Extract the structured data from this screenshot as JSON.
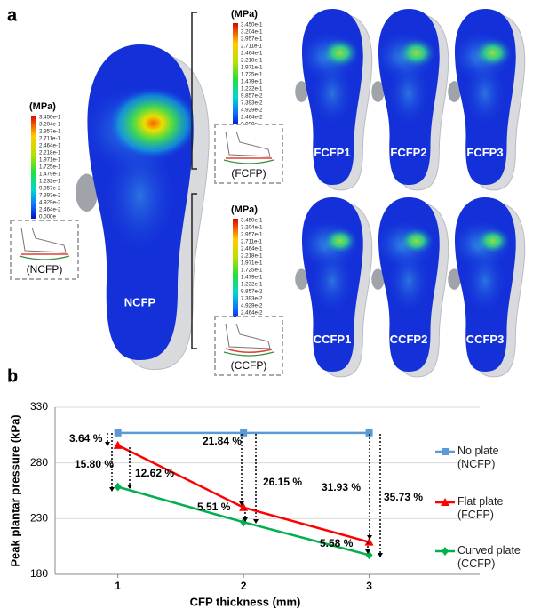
{
  "panel_a": {
    "label": "a",
    "colorbar": {
      "unit": "(MPa)",
      "labels": [
        "3.450e-1",
        "3.204e-1",
        "2.957e-1",
        "2.711e-1",
        "2.464e-1",
        "2.218e-1",
        "1.971e-1",
        "1.725e-1",
        "1.479e-1",
        "1.232e-1",
        "9.857e-2",
        "7.393e-2",
        "4.929e-2",
        "2.464e-2",
        "0.000e"
      ]
    },
    "ncfp": {
      "label": "NCFP",
      "inset": "(NCFP)"
    },
    "fcfp": {
      "inset": "(FCFP)",
      "feet": [
        "FCFP1",
        "FCFP2",
        "FCFP3"
      ]
    },
    "ccfp": {
      "inset": "(CCFP)",
      "feet": [
        "CCFP1",
        "CCFP2",
        "CCFP3"
      ]
    }
  },
  "chart_data": {
    "type": "line",
    "label": "b",
    "xlabel": "CFP thickness (mm)",
    "ylabel": "Peak plantar pressure (kPa)",
    "x": [
      1,
      2,
      3
    ],
    "xlim": [
      0.5,
      3.88
    ],
    "xticks": [
      1,
      2,
      3
    ],
    "ylim": [
      180,
      330
    ],
    "yticks": [
      180,
      230,
      280,
      330
    ],
    "grid": true,
    "series": [
      {
        "name": "No plate (NCFP)",
        "color": "#5b9bd5",
        "marker": "square",
        "values": [
          307,
          307,
          307
        ]
      },
      {
        "name": "Flat plate (FCFP)",
        "color": "#ff0000",
        "marker": "triangle",
        "values": [
          295.8,
          240,
          209
        ]
      },
      {
        "name": "Curved plate (CCFP)",
        "color": "#00b050",
        "marker": "diamond",
        "values": [
          258.5,
          226.8,
          197.3
        ]
      }
    ],
    "annotations": [
      "3.64 %",
      "15.80 %",
      "12.62 %",
      "21.84 %",
      "26.15 %",
      "5.51 %",
      "31.93 %",
      "35.73 %",
      "5.58 %"
    ]
  }
}
